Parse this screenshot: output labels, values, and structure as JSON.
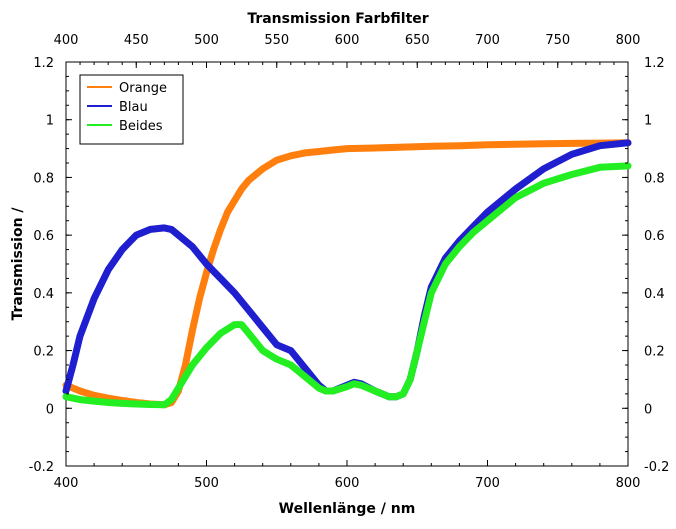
{
  "chart_data": {
    "type": "line",
    "title": "Transmission Farbfilter",
    "xlabel": "Wellenlänge / nm",
    "ylabel": "Transmission /",
    "xlim": [
      400,
      800
    ],
    "ylim": [
      -0.2,
      1.2
    ],
    "x_ticks": [
      "400",
      "500",
      "600",
      "700",
      "800"
    ],
    "x_ticks_top": [
      "400",
      "450",
      "500",
      "550",
      "600",
      "650",
      "700",
      "750",
      "800"
    ],
    "y_ticks": [
      "-0.2",
      "0",
      "0.2",
      "0.4",
      "0.6",
      "0.8",
      "1",
      "1.2"
    ],
    "grid": false,
    "legend_position": "top-left",
    "series": [
      {
        "name": "Orange",
        "color": "#ff7f0e",
        "x": [
          400,
          410,
          420,
          430,
          440,
          450,
          460,
          470,
          475,
          480,
          485,
          490,
          495,
          500,
          505,
          510,
          515,
          520,
          525,
          530,
          540,
          550,
          560,
          570,
          580,
          590,
          600,
          620,
          640,
          660,
          680,
          700,
          720,
          740,
          760,
          780,
          800
        ],
        "y": [
          0.08,
          0.06,
          0.045,
          0.035,
          0.027,
          0.02,
          0.015,
          0.012,
          0.02,
          0.06,
          0.15,
          0.27,
          0.38,
          0.47,
          0.55,
          0.62,
          0.68,
          0.72,
          0.76,
          0.79,
          0.83,
          0.86,
          0.875,
          0.885,
          0.89,
          0.895,
          0.9,
          0.902,
          0.905,
          0.908,
          0.91,
          0.913,
          0.915,
          0.917,
          0.918,
          0.919,
          0.92
        ]
      },
      {
        "name": "Blau",
        "color": "#1f1fcf",
        "x": [
          400,
          405,
          410,
          420,
          430,
          440,
          450,
          460,
          470,
          475,
          480,
          490,
          500,
          510,
          520,
          530,
          540,
          550,
          560,
          570,
          580,
          585,
          590,
          600,
          605,
          610,
          620,
          630,
          635,
          640,
          645,
          650,
          655,
          660,
          670,
          680,
          690,
          700,
          720,
          740,
          760,
          780,
          800
        ],
        "y": [
          0.06,
          0.15,
          0.25,
          0.38,
          0.48,
          0.55,
          0.6,
          0.62,
          0.625,
          0.62,
          0.6,
          0.56,
          0.5,
          0.45,
          0.4,
          0.34,
          0.28,
          0.22,
          0.2,
          0.14,
          0.08,
          0.06,
          0.06,
          0.08,
          0.09,
          0.085,
          0.06,
          0.04,
          0.04,
          0.05,
          0.1,
          0.2,
          0.32,
          0.42,
          0.52,
          0.58,
          0.63,
          0.68,
          0.76,
          0.83,
          0.88,
          0.91,
          0.92
        ]
      },
      {
        "name": "Beides",
        "color": "#22ee22",
        "x": [
          400,
          410,
          420,
          430,
          440,
          450,
          460,
          470,
          475,
          480,
          490,
          500,
          510,
          520,
          525,
          530,
          540,
          550,
          560,
          570,
          580,
          585,
          590,
          600,
          605,
          610,
          620,
          630,
          635,
          640,
          645,
          650,
          655,
          660,
          670,
          680,
          690,
          700,
          720,
          740,
          760,
          780,
          800
        ],
        "y": [
          0.04,
          0.03,
          0.025,
          0.02,
          0.017,
          0.015,
          0.013,
          0.012,
          0.03,
          0.07,
          0.15,
          0.21,
          0.26,
          0.29,
          0.29,
          0.26,
          0.2,
          0.17,
          0.15,
          0.11,
          0.07,
          0.06,
          0.06,
          0.075,
          0.085,
          0.08,
          0.06,
          0.04,
          0.04,
          0.05,
          0.1,
          0.2,
          0.3,
          0.4,
          0.5,
          0.56,
          0.61,
          0.65,
          0.73,
          0.78,
          0.81,
          0.835,
          0.84
        ]
      }
    ]
  }
}
